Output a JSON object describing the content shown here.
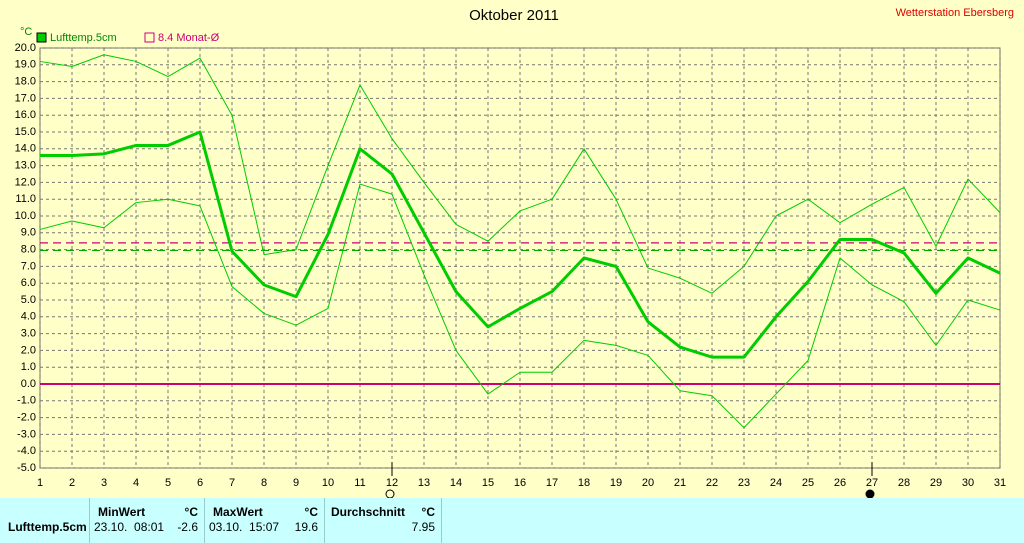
{
  "station": "Wetterstation Ebersberg",
  "chart_data": {
    "type": "line",
    "title": "Oktober 2011",
    "y_unit": "°C",
    "x": [
      1,
      2,
      3,
      4,
      5,
      6,
      7,
      8,
      9,
      10,
      11,
      12,
      13,
      14,
      15,
      16,
      17,
      18,
      19,
      20,
      21,
      22,
      23,
      24,
      25,
      26,
      27,
      28,
      29,
      30,
      31
    ],
    "xlim": [
      1,
      31
    ],
    "xticks": [
      1,
      2,
      3,
      4,
      5,
      6,
      7,
      8,
      9,
      10,
      11,
      12,
      13,
      14,
      15,
      16,
      17,
      18,
      19,
      20,
      21,
      22,
      23,
      24,
      25,
      26,
      27,
      28,
      29,
      30,
      31
    ],
    "ylim": [
      -5,
      20
    ],
    "yticks": [
      {
        "value": -5,
        "label": "-5.0"
      },
      {
        "value": -4,
        "label": "-4.0"
      },
      {
        "value": -3,
        "label": "-3.0"
      },
      {
        "value": -2,
        "label": "-2.0"
      },
      {
        "value": -1,
        "label": "-1.0"
      },
      {
        "value": 0,
        "label": "0.0"
      },
      {
        "value": 1,
        "label": "1.0"
      },
      {
        "value": 2,
        "label": "2.0"
      },
      {
        "value": 3,
        "label": "3.0"
      },
      {
        "value": 4,
        "label": "4.0"
      },
      {
        "value": 5,
        "label": "5.0"
      },
      {
        "value": 6,
        "label": "6.0"
      },
      {
        "value": 7,
        "label": "7.0"
      },
      {
        "value": 8,
        "label": "8.0"
      },
      {
        "value": 9,
        "label": "9.0"
      },
      {
        "value": 10,
        "label": "10.0"
      },
      {
        "value": 11,
        "label": "11.0"
      },
      {
        "value": 12,
        "label": "12.0"
      },
      {
        "value": 13,
        "label": "13.0"
      },
      {
        "value": 14,
        "label": "14.0"
      },
      {
        "value": 15,
        "label": "15.0"
      },
      {
        "value": 16,
        "label": "16.0"
      },
      {
        "value": 17,
        "label": "17.0"
      },
      {
        "value": 18,
        "label": "18.0"
      },
      {
        "value": 19,
        "label": "19.0"
      },
      {
        "value": 20,
        "label": "20.0"
      }
    ],
    "grid": true,
    "series": [
      {
        "name": "Lufttemp.5cm",
        "color": "#00cc00",
        "width": 3,
        "values": [
          13.6,
          13.6,
          13.7,
          14.2,
          14.2,
          15.0,
          7.9,
          5.9,
          5.2,
          8.9,
          14.0,
          12.5,
          9.0,
          5.5,
          3.4,
          4.5,
          5.5,
          7.5,
          7.0,
          3.7,
          2.2,
          1.6,
          1.6,
          4.0,
          6.1,
          8.6,
          8.6,
          7.8,
          5.4,
          7.5,
          6.6
        ]
      },
      {
        "color": "#00cc00",
        "width": 1,
        "values": [
          19.2,
          18.9,
          19.6,
          19.2,
          18.3,
          19.4,
          16.0,
          7.7,
          8.0,
          13.0,
          17.8,
          14.6,
          12.0,
          9.5,
          8.5,
          10.3,
          11.0,
          14.0,
          11.0,
          6.9,
          6.3,
          5.4,
          7.0,
          10.0,
          11.0,
          9.6,
          10.7,
          11.7,
          8.2,
          12.2,
          10.2
        ]
      },
      {
        "color": "#00cc00",
        "width": 1,
        "values": [
          9.2,
          9.7,
          9.3,
          10.8,
          11.0,
          10.6,
          5.8,
          4.2,
          3.5,
          4.5,
          11.9,
          11.3,
          6.5,
          2.0,
          -0.6,
          0.7,
          0.7,
          2.6,
          2.3,
          1.7,
          -0.4,
          -0.7,
          -2.6,
          -0.6,
          1.4,
          7.5,
          5.9,
          4.9,
          2.3,
          5.0,
          4.4
        ]
      }
    ],
    "reference_lines": [
      {
        "value": 8.4,
        "label": "8.4 Monat-Ø",
        "color": "#cc0077",
        "dashed": true
      },
      {
        "value": 7.95,
        "color": "#00aa00",
        "dashed": true
      },
      {
        "value": 0,
        "color": "#cc0077",
        "dashed": false
      }
    ]
  },
  "table": {
    "header": [
      "MinWert",
      "°C",
      "MaxWert",
      "°C",
      "Durchschnitt",
      "°C"
    ],
    "rows": [
      [
        "Lufttemp.5cm",
        "23.10.  08:01",
        "-2.6",
        "03.10.  15:07",
        "19.6",
        "7.95"
      ]
    ]
  }
}
